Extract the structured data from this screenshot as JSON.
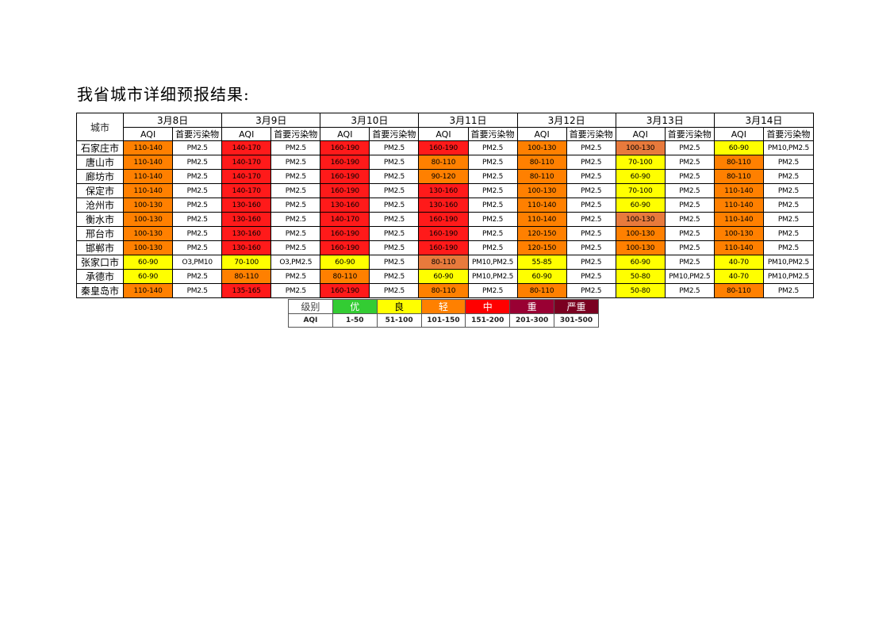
{
  "title": "我省城市详细预报结果:",
  "table": {
    "city_header": "城市",
    "aqi_label": "AQI",
    "pollutant_label": "首要污染物",
    "dates": [
      "3月8日",
      "3月9日",
      "3月10日",
      "3月11日",
      "3月12日",
      "3月13日",
      "3月14日"
    ],
    "rows": [
      {
        "city": "石家庄市",
        "cells": [
          [
            "110-140",
            "PM2.5"
          ],
          [
            "140-170",
            "PM2.5"
          ],
          [
            "160-190",
            "PM2.5"
          ],
          [
            "160-190",
            "PM2.5"
          ],
          [
            "100-130",
            "PM2.5"
          ],
          [
            "100-130",
            "PM2.5"
          ],
          [
            "60-90",
            "PM10,PM2.5"
          ]
        ]
      },
      {
        "city": "唐山市",
        "cells": [
          [
            "110-140",
            "PM2.5"
          ],
          [
            "140-170",
            "PM2.5"
          ],
          [
            "160-190",
            "PM2.5"
          ],
          [
            "80-110",
            "PM2.5"
          ],
          [
            "80-110",
            "PM2.5"
          ],
          [
            "70-100",
            "PM2.5"
          ],
          [
            "80-110",
            "PM2.5"
          ]
        ]
      },
      {
        "city": "廊坊市",
        "cells": [
          [
            "110-140",
            "PM2.5"
          ],
          [
            "140-170",
            "PM2.5"
          ],
          [
            "160-190",
            "PM2.5"
          ],
          [
            "90-120",
            "PM2.5"
          ],
          [
            "80-110",
            "PM2.5"
          ],
          [
            "60-90",
            "PM2.5"
          ],
          [
            "80-110",
            "PM2.5"
          ]
        ]
      },
      {
        "city": "保定市",
        "cells": [
          [
            "110-140",
            "PM2.5"
          ],
          [
            "140-170",
            "PM2.5"
          ],
          [
            "160-190",
            "PM2.5"
          ],
          [
            "130-160",
            "PM2.5"
          ],
          [
            "100-130",
            "PM2.5"
          ],
          [
            "70-100",
            "PM2.5"
          ],
          [
            "110-140",
            "PM2.5"
          ]
        ]
      },
      {
        "city": "沧州市",
        "cells": [
          [
            "100-130",
            "PM2.5"
          ],
          [
            "130-160",
            "PM2.5"
          ],
          [
            "130-160",
            "PM2.5"
          ],
          [
            "130-160",
            "PM2.5"
          ],
          [
            "110-140",
            "PM2.5"
          ],
          [
            "60-90",
            "PM2.5"
          ],
          [
            "110-140",
            "PM2.5"
          ]
        ]
      },
      {
        "city": "衡水市",
        "cells": [
          [
            "100-130",
            "PM2.5"
          ],
          [
            "130-160",
            "PM2.5"
          ],
          [
            "140-170",
            "PM2.5"
          ],
          [
            "160-190",
            "PM2.5"
          ],
          [
            "110-140",
            "PM2.5"
          ],
          [
            "100-130",
            "PM2.5"
          ],
          [
            "110-140",
            "PM2.5"
          ]
        ]
      },
      {
        "city": "邢台市",
        "cells": [
          [
            "100-130",
            "PM2.5"
          ],
          [
            "130-160",
            "PM2.5"
          ],
          [
            "160-190",
            "PM2.5"
          ],
          [
            "160-190",
            "PM2.5"
          ],
          [
            "120-150",
            "PM2.5"
          ],
          [
            "100-130",
            "PM2.5"
          ],
          [
            "100-130",
            "PM2.5"
          ]
        ]
      },
      {
        "city": "邯郸市",
        "cells": [
          [
            "100-130",
            "PM2.5"
          ],
          [
            "130-160",
            "PM2.5"
          ],
          [
            "160-190",
            "PM2.5"
          ],
          [
            "160-190",
            "PM2.5"
          ],
          [
            "120-150",
            "PM2.5"
          ],
          [
            "100-130",
            "PM2.5"
          ],
          [
            "110-140",
            "PM2.5"
          ]
        ]
      },
      {
        "city": "张家口市",
        "cells": [
          [
            "60-90",
            "O3,PM10"
          ],
          [
            "70-100",
            "O3,PM2.5"
          ],
          [
            "60-90",
            "PM2.5"
          ],
          [
            "80-110",
            "PM10,PM2.5"
          ],
          [
            "55-85",
            "PM2.5"
          ],
          [
            "60-90",
            "PM2.5"
          ],
          [
            "40-70",
            "PM10,PM2.5"
          ]
        ]
      },
      {
        "city": "承德市",
        "cells": [
          [
            "60-90",
            "PM2.5"
          ],
          [
            "80-110",
            "PM2.5"
          ],
          [
            "80-110",
            "PM2.5"
          ],
          [
            "60-90",
            "PM10,PM2.5"
          ],
          [
            "60-90",
            "PM2.5"
          ],
          [
            "50-80",
            "PM10,PM2.5"
          ],
          [
            "40-70",
            "PM10,PM2.5"
          ]
        ]
      },
      {
        "city": "秦皇岛市",
        "cells": [
          [
            "110-140",
            "PM2.5"
          ],
          [
            "135-165",
            "PM2.5"
          ],
          [
            "160-190",
            "PM2.5"
          ],
          [
            "80-110",
            "PM2.5"
          ],
          [
            "80-110",
            "PM2.5"
          ],
          [
            "50-80",
            "PM2.5"
          ],
          [
            "80-110",
            "PM2.5"
          ]
        ]
      }
    ],
    "cell_colors": [
      [
        "#ff8000",
        "#ff1a1a",
        "#ff1a1a",
        "#ff1a1a",
        "#ff8000",
        "#e87a3c",
        "#ffff00"
      ],
      [
        "#ff8000",
        "#ff1a1a",
        "#ff1a1a",
        "#ff8000",
        "#ff8000",
        "#ffff00",
        "#ff8000"
      ],
      [
        "#ff8000",
        "#ff1a1a",
        "#ff1a1a",
        "#ff8000",
        "#ff8000",
        "#ffff00",
        "#ff8000"
      ],
      [
        "#ff8000",
        "#ff1a1a",
        "#ff1a1a",
        "#ff1a1a",
        "#ff8000",
        "#ffff00",
        "#ff8000"
      ],
      [
        "#ff8000",
        "#ff1a1a",
        "#ff1a1a",
        "#ff1a1a",
        "#ff8000",
        "#ffff00",
        "#ff8000"
      ],
      [
        "#ff8000",
        "#ff1a1a",
        "#ff1a1a",
        "#ff1a1a",
        "#ff8000",
        "#e87a3c",
        "#ff8000"
      ],
      [
        "#ff8000",
        "#ff1a1a",
        "#ff1a1a",
        "#ff1a1a",
        "#ff8000",
        "#ff8000",
        "#ff8000"
      ],
      [
        "#ff8000",
        "#ff1a1a",
        "#ff1a1a",
        "#ff1a1a",
        "#ff8000",
        "#ff8000",
        "#ff8000"
      ],
      [
        "#ffff00",
        "#ffff00",
        "#ffff00",
        "#e87a3c",
        "#ffff00",
        "#ffff00",
        "#ffff00"
      ],
      [
        "#ffff00",
        "#ff8000",
        "#ff8000",
        "#ffff00",
        "#ffff00",
        "#ffff00",
        "#ffff00"
      ],
      [
        "#ff8000",
        "#ff1a1a",
        "#ff1a1a",
        "#ff8000",
        "#ff8000",
        "#ffff00",
        "#ff8000"
      ]
    ]
  },
  "legend": {
    "level_label": "级别",
    "aqi_label": "AQI",
    "levels": [
      {
        "name": "优",
        "range": "1-50",
        "color": "#33cc33",
        "text_color": "#ffffff"
      },
      {
        "name": "良",
        "range": "51-100",
        "color": "#ffff00",
        "text_color": "#000000"
      },
      {
        "name": "轻",
        "range": "101-150",
        "color": "#ff8000",
        "text_color": "#ffffff"
      },
      {
        "name": "中",
        "range": "151-200",
        "color": "#ff0000",
        "text_color": "#ffffff"
      },
      {
        "name": "重",
        "range": "201-300",
        "color": "#990033",
        "text_color": "#ffffff"
      },
      {
        "name": "严重",
        "range": "301-500",
        "color": "#7a0020",
        "text_color": "#ffffff"
      }
    ]
  }
}
